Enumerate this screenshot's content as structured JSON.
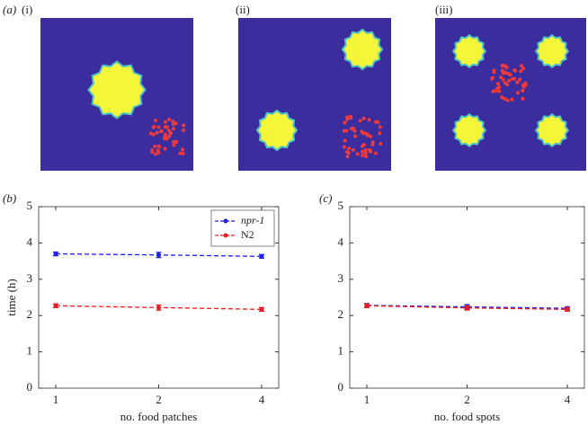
{
  "panel_labels": {
    "a": "(a)",
    "i": "(i)",
    "ii": "(ii)",
    "iii": "(iii)",
    "b": "(b)",
    "c": "(c)"
  },
  "chart_data": [
    {
      "type": "line",
      "panel": "b",
      "xlabel": "no. food patches",
      "ylabel": "time (h)",
      "categories": [
        "1",
        "2",
        "4"
      ],
      "ylim": [
        0,
        5
      ],
      "yticks": [
        0,
        1,
        2,
        3,
        4,
        5
      ],
      "legend": "upper right",
      "series": [
        {
          "name": "npr-1",
          "color": "#1f1fe6",
          "values": [
            3.7,
            3.67,
            3.63
          ],
          "errors": [
            0.05,
            0.07,
            0.05
          ]
        },
        {
          "name": "N2",
          "color": "#e61f1f",
          "values": [
            2.27,
            2.22,
            2.17
          ],
          "errors": [
            0.05,
            0.07,
            0.05
          ]
        }
      ]
    },
    {
      "type": "line",
      "panel": "c",
      "xlabel": "no. food spots",
      "categories": [
        "1",
        "2",
        "4"
      ],
      "ylim": [
        0,
        5
      ],
      "yticks": [
        0,
        1,
        2,
        3,
        4,
        5
      ],
      "series": [
        {
          "color": "#1f1fe6",
          "values": [
            2.28,
            2.24,
            2.2
          ],
          "errors": [
            0.05,
            0.06,
            0.04
          ]
        },
        {
          "color": "#e61f1f",
          "values": [
            2.27,
            2.21,
            2.17
          ],
          "errors": [
            0.05,
            0.06,
            0.05
          ]
        }
      ]
    }
  ]
}
